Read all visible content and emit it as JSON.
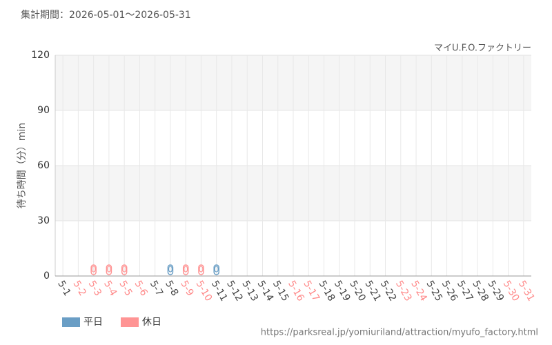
{
  "period": "集計期間：2026-05-01～2026-05-31",
  "source_url": "https://parksreal.jp/yomiuriland/attraction/myufo_factory.html",
  "chart_data": {
    "type": "bar",
    "subtitle": "マイU.F.O.ファクトリー",
    "y_label": "待ち時間（分）min",
    "categories": [
      "5-1",
      "5-2",
      "5-3",
      "5-4",
      "5-5",
      "5-6",
      "5-7",
      "5-8",
      "5-9",
      "5-10",
      "5-11",
      "5-12",
      "5-13",
      "5-14",
      "5-15",
      "5-16",
      "5-17",
      "5-18",
      "5-19",
      "5-20",
      "5-21",
      "5-22",
      "5-23",
      "5-24",
      "5-25",
      "5-26",
      "5-27",
      "5-28",
      "5-29",
      "5-30",
      "5-31"
    ],
    "category_colors": [
      "#444",
      "#f88",
      "#f88",
      "#f88",
      "#f88",
      "#f88",
      "#444",
      "#444",
      "#f88",
      "#f88",
      "#444",
      "#444",
      "#444",
      "#444",
      "#444",
      "#f88",
      "#f88",
      "#444",
      "#444",
      "#444",
      "#444",
      "#444",
      "#f88",
      "#f88",
      "#444",
      "#444",
      "#444",
      "#444",
      "#444",
      "#f88",
      "#f88"
    ],
    "series": [
      {
        "name": "平日",
        "color": "#6a9ec5",
        "values": [
          null,
          null,
          null,
          null,
          null,
          null,
          null,
          0,
          null,
          null,
          0,
          null,
          null,
          null,
          null,
          null,
          null,
          null,
          null,
          null,
          null,
          null,
          null,
          null,
          null,
          null,
          null,
          null,
          null,
          null,
          null
        ]
      },
      {
        "name": "休日",
        "color": "#ff9494",
        "values": [
          null,
          null,
          0,
          0,
          0,
          null,
          null,
          null,
          0,
          0,
          null,
          null,
          null,
          null,
          null,
          null,
          null,
          null,
          null,
          null,
          null,
          null,
          null,
          null,
          null,
          null,
          null,
          null,
          null,
          null,
          null
        ]
      }
    ],
    "ylim": [
      0,
      120
    ],
    "yticks": [
      0,
      30,
      60,
      90,
      120
    ],
    "grid": true,
    "legend": "bottom-left"
  }
}
